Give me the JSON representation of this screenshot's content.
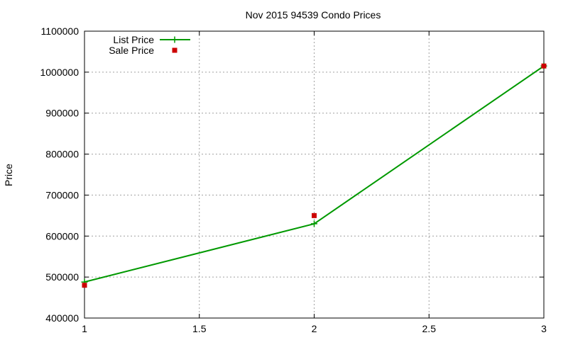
{
  "chart_data": {
    "type": "line",
    "title": "Nov 2015 94539 Condo Prices",
    "xlabel": "",
    "ylabel": "Price",
    "xlim": [
      1,
      3
    ],
    "ylim": [
      400000,
      1100000
    ],
    "x_ticks": [
      1,
      1.5,
      2,
      2.5,
      3
    ],
    "x_tick_labels": [
      "1",
      "1.5",
      "2",
      "2.5",
      "3"
    ],
    "y_ticks": [
      400000,
      500000,
      600000,
      700000,
      800000,
      900000,
      1000000,
      1100000
    ],
    "y_tick_labels": [
      "400000",
      "500000",
      "600000",
      "700000",
      "800000",
      "900000",
      "1000000",
      "1100000"
    ],
    "grid": true,
    "legend_position": "top-left",
    "series": [
      {
        "name": "List Price",
        "style": "linespoints",
        "marker": "plus",
        "color": "#009900",
        "x": [
          1,
          2,
          3
        ],
        "y": [
          488000,
          630000,
          1015000
        ]
      },
      {
        "name": "Sale Price",
        "style": "points",
        "marker": "square",
        "color": "#cc0000",
        "x": [
          1,
          2,
          3
        ],
        "y": [
          480000,
          650000,
          1015000
        ]
      }
    ]
  }
}
